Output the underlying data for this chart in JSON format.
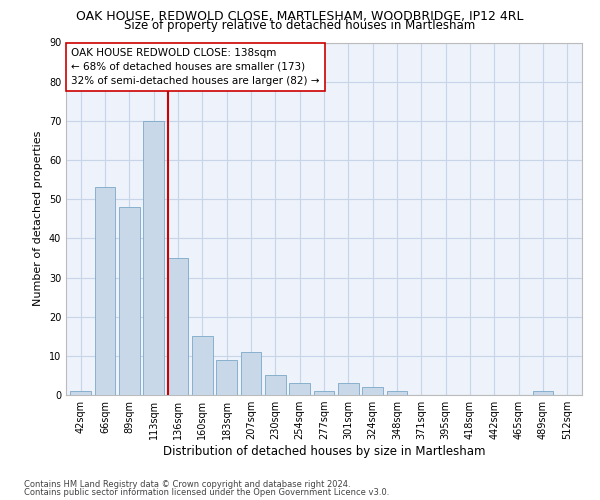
{
  "title": "OAK HOUSE, REDWOLD CLOSE, MARTLESHAM, WOODBRIDGE, IP12 4RL",
  "subtitle": "Size of property relative to detached houses in Martlesham",
  "xlabel": "Distribution of detached houses by size in Martlesham",
  "ylabel": "Number of detached properties",
  "categories": [
    "42sqm",
    "66sqm",
    "89sqm",
    "113sqm",
    "136sqm",
    "160sqm",
    "183sqm",
    "207sqm",
    "230sqm",
    "254sqm",
    "277sqm",
    "301sqm",
    "324sqm",
    "348sqm",
    "371sqm",
    "395sqm",
    "418sqm",
    "442sqm",
    "465sqm",
    "489sqm",
    "512sqm"
  ],
  "values": [
    1,
    53,
    48,
    70,
    35,
    15,
    9,
    11,
    5,
    3,
    1,
    3,
    2,
    1,
    0,
    0,
    0,
    0,
    0,
    1,
    0
  ],
  "bar_color": "#c8d8e8",
  "bar_edge_color": "#7ba8c8",
  "property_line_color": "#cc0000",
  "property_line_bin": 4,
  "annotation_line1": "OAK HOUSE REDWOLD CLOSE: 138sqm",
  "annotation_line2": "← 68% of detached houses are smaller (173)",
  "annotation_line3": "32% of semi-detached houses are larger (82) →",
  "annotation_box_color": "#ffffff",
  "annotation_box_edge": "#cc0000",
  "ylim": [
    0,
    90
  ],
  "yticks": [
    0,
    10,
    20,
    30,
    40,
    50,
    60,
    70,
    80,
    90
  ],
  "grid_color": "#c8d4e8",
  "background_color": "#edf2fb",
  "footer_line1": "Contains HM Land Registry data © Crown copyright and database right 2024.",
  "footer_line2": "Contains public sector information licensed under the Open Government Licence v3.0.",
  "title_fontsize": 9.0,
  "subtitle_fontsize": 8.5,
  "xlabel_fontsize": 8.5,
  "ylabel_fontsize": 8.0,
  "tick_fontsize": 7.0,
  "annotation_fontsize": 7.5,
  "footer_fontsize": 6.0
}
